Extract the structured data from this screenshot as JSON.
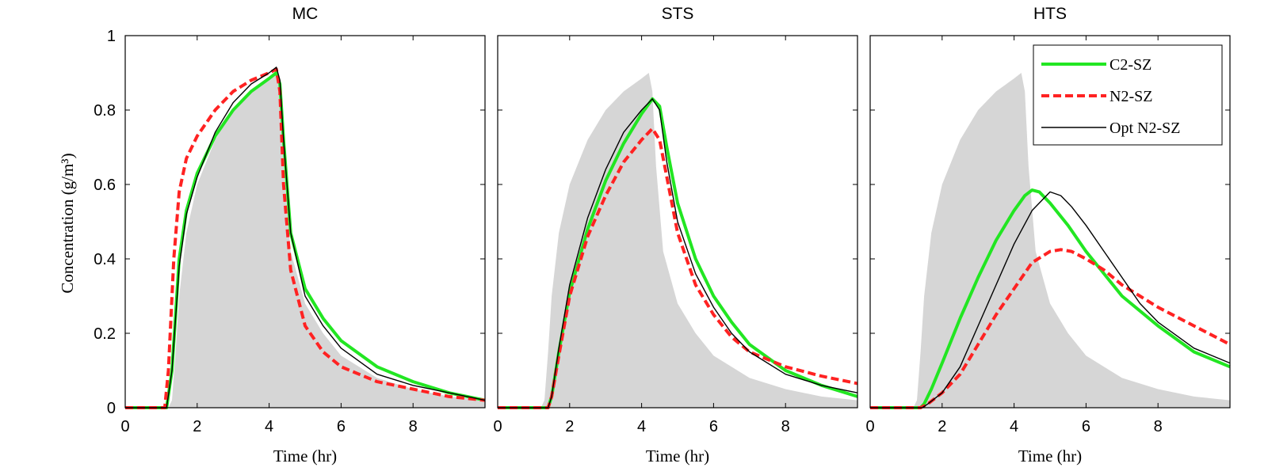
{
  "chart_data": {
    "type": "line",
    "ylabel": "Concentration (g/m³)",
    "shared_y_ticks": [
      "0",
      "0.2",
      "0.4",
      "0.6",
      "0.8",
      "1"
    ],
    "ylim": [
      0,
      1
    ],
    "grid": false,
    "legend": {
      "panel": "HTS",
      "placement": "top-right",
      "entries": [
        {
          "name": "C2-SZ",
          "color": "#22e622",
          "style": "solid-thick"
        },
        {
          "name": "N2-SZ",
          "color": "#ff2222",
          "style": "dashed-thick"
        },
        {
          "name": "Opt N2-SZ",
          "color": "#000000",
          "style": "solid-thin"
        }
      ]
    },
    "area_color": "#d6d6d6",
    "panels": [
      {
        "title": "MC",
        "xlabel": "Time (hr)",
        "xlim": [
          0,
          10
        ],
        "x_ticks": [
          "0",
          "2",
          "4",
          "6",
          "8"
        ],
        "area": {
          "x": [
            0,
            1.2,
            1.3,
            1.4,
            1.5,
            1.7,
            2.0,
            2.5,
            3.0,
            3.5,
            4.0,
            4.2,
            4.3,
            4.4,
            4.6,
            5.0,
            5.5,
            6.0,
            7.0,
            8.0,
            9.0,
            10.0
          ],
          "y": [
            0,
            0,
            0.02,
            0.15,
            0.3,
            0.47,
            0.6,
            0.72,
            0.8,
            0.85,
            0.885,
            0.9,
            0.85,
            0.65,
            0.42,
            0.28,
            0.2,
            0.14,
            0.08,
            0.05,
            0.03,
            0.02
          ]
        },
        "series": [
          {
            "name": "C2-SZ",
            "x": [
              0,
              1.15,
              1.3,
              1.5,
              1.7,
              2.0,
              2.5,
              3.0,
              3.5,
              4.0,
              4.2,
              4.3,
              4.4,
              4.6,
              5.0,
              5.5,
              6.0,
              7.0,
              8.0,
              9.0,
              10.0
            ],
            "y": [
              0,
              0,
              0.1,
              0.4,
              0.53,
              0.63,
              0.73,
              0.8,
              0.85,
              0.885,
              0.9,
              0.87,
              0.72,
              0.47,
              0.32,
              0.24,
              0.18,
              0.11,
              0.07,
              0.04,
              0.02
            ]
          },
          {
            "name": "N2-SZ",
            "x": [
              0,
              1.1,
              1.2,
              1.35,
              1.5,
              1.7,
              2.0,
              2.5,
              3.0,
              3.5,
              4.0,
              4.2,
              4.3,
              4.4,
              4.6,
              5.0,
              5.5,
              6.0,
              7.0,
              8.0,
              9.0,
              10.0
            ],
            "y": [
              0,
              0,
              0.1,
              0.4,
              0.58,
              0.67,
              0.73,
              0.8,
              0.85,
              0.88,
              0.9,
              0.91,
              0.85,
              0.6,
              0.37,
              0.22,
              0.15,
              0.11,
              0.07,
              0.05,
              0.03,
              0.02
            ]
          },
          {
            "name": "Opt N2-SZ",
            "x": [
              0,
              1.15,
              1.3,
              1.5,
              1.7,
              2.0,
              2.5,
              3.0,
              3.5,
              4.0,
              4.2,
              4.3,
              4.4,
              4.6,
              5.0,
              5.5,
              6.0,
              7.0,
              8.0,
              9.0,
              10.0
            ],
            "y": [
              0,
              0,
              0.1,
              0.38,
              0.52,
              0.62,
              0.74,
              0.82,
              0.87,
              0.9,
              0.915,
              0.88,
              0.72,
              0.47,
              0.3,
              0.22,
              0.16,
              0.09,
              0.06,
              0.04,
              0.02
            ]
          }
        ]
      },
      {
        "title": "STS",
        "xlabel": "Time (hr)",
        "xlim": [
          0,
          10
        ],
        "x_ticks": [
          "0",
          "2",
          "4",
          "6",
          "8"
        ],
        "area": {
          "x": [
            0,
            1.2,
            1.3,
            1.4,
            1.5,
            1.7,
            2.0,
            2.5,
            3.0,
            3.5,
            4.0,
            4.2,
            4.3,
            4.4,
            4.6,
            5.0,
            5.5,
            6.0,
            7.0,
            8.0,
            9.0,
            10.0
          ],
          "y": [
            0,
            0,
            0.02,
            0.15,
            0.3,
            0.47,
            0.6,
            0.72,
            0.8,
            0.85,
            0.885,
            0.9,
            0.85,
            0.65,
            0.42,
            0.28,
            0.2,
            0.14,
            0.08,
            0.05,
            0.03,
            0.02
          ]
        },
        "series": [
          {
            "name": "C2-SZ",
            "x": [
              0,
              1.4,
              1.5,
              1.7,
              2.0,
              2.5,
              3.0,
              3.5,
              4.0,
              4.3,
              4.5,
              4.7,
              5.0,
              5.5,
              6.0,
              6.5,
              7.0,
              8.0,
              9.0,
              10.0
            ],
            "y": [
              0,
              0,
              0.03,
              0.15,
              0.31,
              0.48,
              0.61,
              0.71,
              0.79,
              0.83,
              0.81,
              0.7,
              0.55,
              0.4,
              0.3,
              0.23,
              0.17,
              0.1,
              0.06,
              0.03
            ]
          },
          {
            "name": "N2-SZ",
            "x": [
              0,
              1.4,
              1.5,
              1.7,
              2.0,
              2.5,
              3.0,
              3.5,
              4.0,
              4.3,
              4.5,
              4.7,
              5.0,
              5.5,
              6.0,
              6.5,
              7.0,
              8.0,
              9.0,
              10.0
            ],
            "y": [
              0,
              0,
              0.03,
              0.14,
              0.3,
              0.46,
              0.57,
              0.66,
              0.72,
              0.75,
              0.72,
              0.62,
              0.47,
              0.33,
              0.25,
              0.19,
              0.15,
              0.11,
              0.085,
              0.065
            ]
          },
          {
            "name": "Opt N2-SZ",
            "x": [
              0,
              1.4,
              1.5,
              1.7,
              2.0,
              2.5,
              3.0,
              3.5,
              4.0,
              4.3,
              4.5,
              4.7,
              5.0,
              5.5,
              6.0,
              6.5,
              7.0,
              8.0,
              9.0,
              10.0
            ],
            "y": [
              0,
              0,
              0.03,
              0.16,
              0.33,
              0.51,
              0.64,
              0.74,
              0.8,
              0.83,
              0.8,
              0.66,
              0.5,
              0.36,
              0.27,
              0.2,
              0.15,
              0.09,
              0.06,
              0.04
            ]
          }
        ]
      },
      {
        "title": "HTS",
        "xlabel": "Time (hr)",
        "xlim": [
          0,
          10
        ],
        "x_ticks": [
          "0",
          "2",
          "4",
          "6",
          "8"
        ],
        "area": {
          "x": [
            0,
            1.2,
            1.3,
            1.4,
            1.5,
            1.7,
            2.0,
            2.5,
            3.0,
            3.5,
            4.0,
            4.2,
            4.3,
            4.4,
            4.6,
            5.0,
            5.5,
            6.0,
            7.0,
            8.0,
            9.0,
            10.0
          ],
          "y": [
            0,
            0,
            0.02,
            0.15,
            0.3,
            0.47,
            0.6,
            0.72,
            0.8,
            0.85,
            0.885,
            0.9,
            0.85,
            0.65,
            0.42,
            0.28,
            0.2,
            0.14,
            0.08,
            0.05,
            0.03,
            0.02
          ]
        },
        "series": [
          {
            "name": "C2-SZ",
            "x": [
              0,
              1.4,
              1.5,
              1.7,
              2.0,
              2.5,
              3.0,
              3.5,
              4.0,
              4.3,
              4.5,
              4.7,
              5.0,
              5.5,
              6.0,
              6.5,
              7.0,
              8.0,
              9.0,
              10.0
            ],
            "y": [
              0,
              0,
              0.01,
              0.05,
              0.12,
              0.24,
              0.35,
              0.45,
              0.53,
              0.57,
              0.585,
              0.58,
              0.55,
              0.49,
              0.42,
              0.36,
              0.3,
              0.22,
              0.15,
              0.11
            ]
          },
          {
            "name": "N2-SZ",
            "x": [
              0,
              1.4,
              1.6,
              2.0,
              2.5,
              3.0,
              3.5,
              4.0,
              4.5,
              5.0,
              5.3,
              5.6,
              6.0,
              6.5,
              7.0,
              7.5,
              8.0,
              9.0,
              10.0
            ],
            "y": [
              0,
              0,
              0.01,
              0.04,
              0.09,
              0.17,
              0.25,
              0.32,
              0.39,
              0.42,
              0.425,
              0.42,
              0.4,
              0.37,
              0.33,
              0.3,
              0.27,
              0.22,
              0.17
            ]
          },
          {
            "name": "Opt N2-SZ",
            "x": [
              0,
              1.45,
              1.6,
              2.0,
              2.5,
              3.0,
              3.5,
              4.0,
              4.5,
              5.0,
              5.3,
              5.6,
              6.0,
              6.5,
              7.0,
              7.5,
              8.0,
              9.0,
              10.0
            ],
            "y": [
              0,
              0,
              0.01,
              0.04,
              0.11,
              0.22,
              0.33,
              0.44,
              0.53,
              0.58,
              0.57,
              0.54,
              0.49,
              0.42,
              0.35,
              0.28,
              0.23,
              0.16,
              0.12
            ]
          }
        ]
      }
    ]
  }
}
